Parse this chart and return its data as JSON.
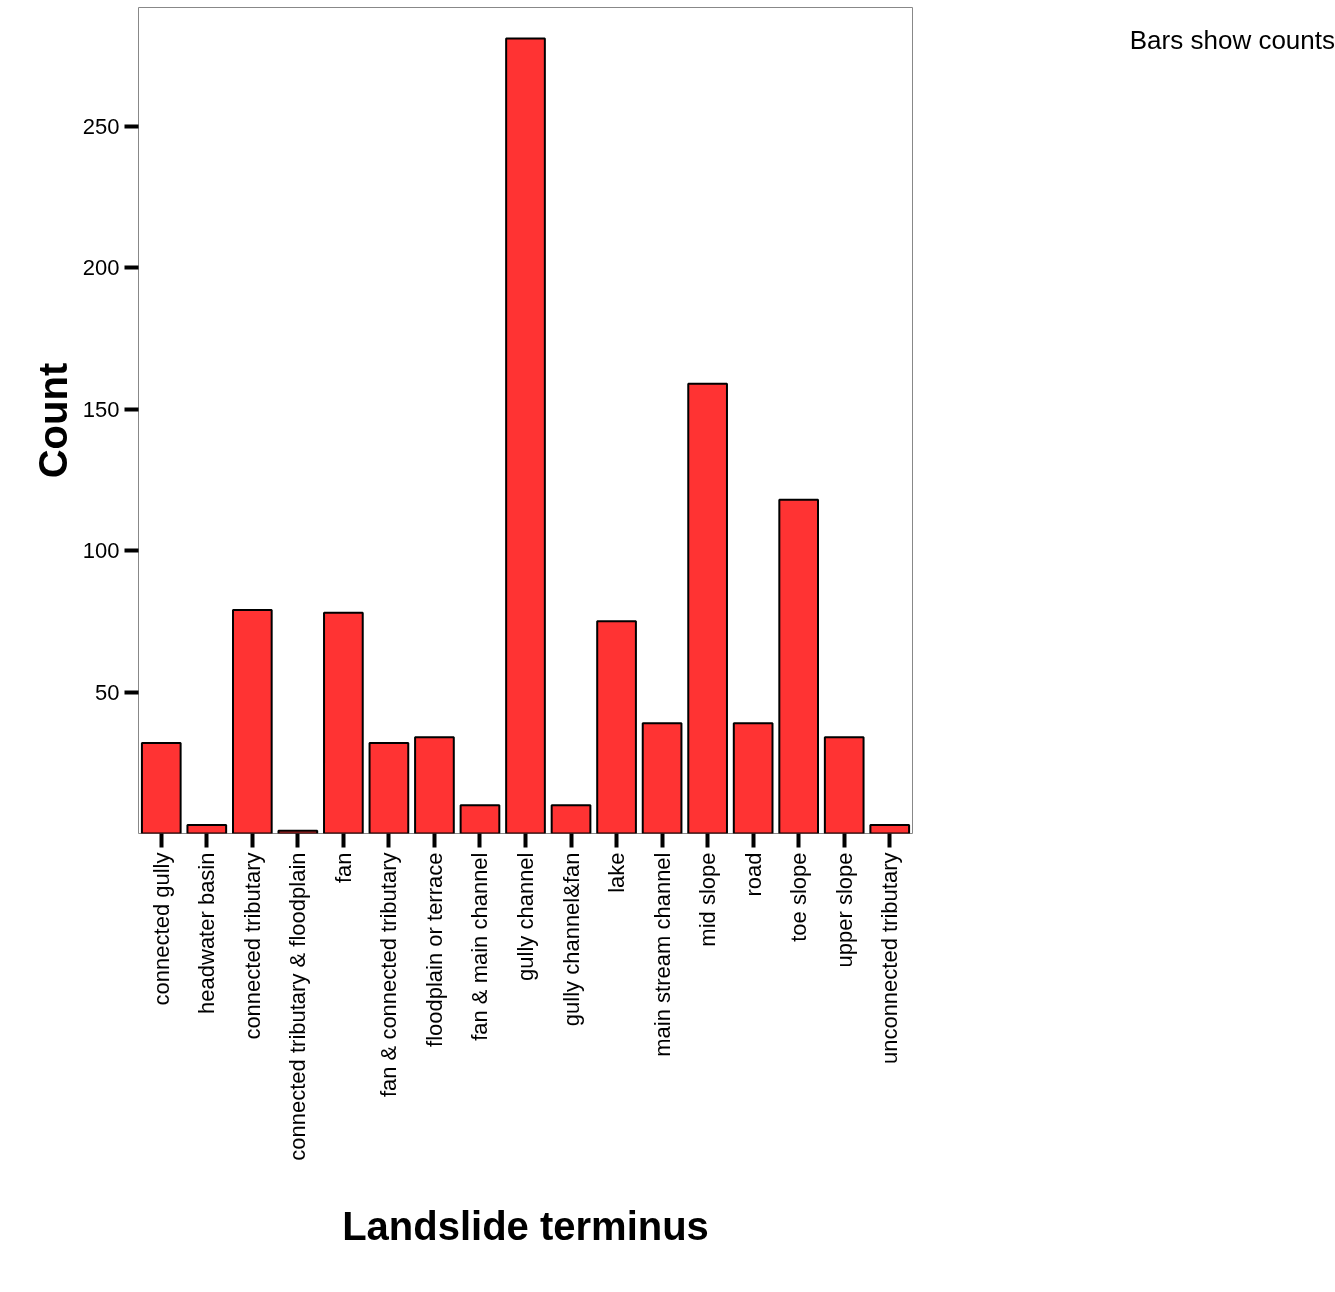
{
  "chart_data": {
    "type": "bar",
    "xlabel": "Landslide terminus",
    "ylabel": "Count",
    "annotations": [
      "Bars show counts"
    ],
    "categories": [
      "connected gully",
      "headwater basin",
      "connected tributary",
      "connected tributary & floodplain",
      "fan",
      "fan & connected tributary",
      "floodplain or terrace",
      "fan & main channel",
      "gully channel",
      "gully channel&fan",
      "lake",
      "main stream channel",
      "mid slope",
      "road",
      "toe slope",
      "upper slope",
      "unconnected tributary"
    ],
    "values": [
      32,
      3,
      79,
      1,
      78,
      32,
      34,
      10,
      281,
      10,
      75,
      39,
      159,
      39,
      118,
      34,
      3
    ],
    "color": "#ff3333",
    "ylim": [
      0,
      292
    ],
    "yticks": [
      50,
      100,
      150,
      200,
      250
    ],
    "grid": false
  }
}
